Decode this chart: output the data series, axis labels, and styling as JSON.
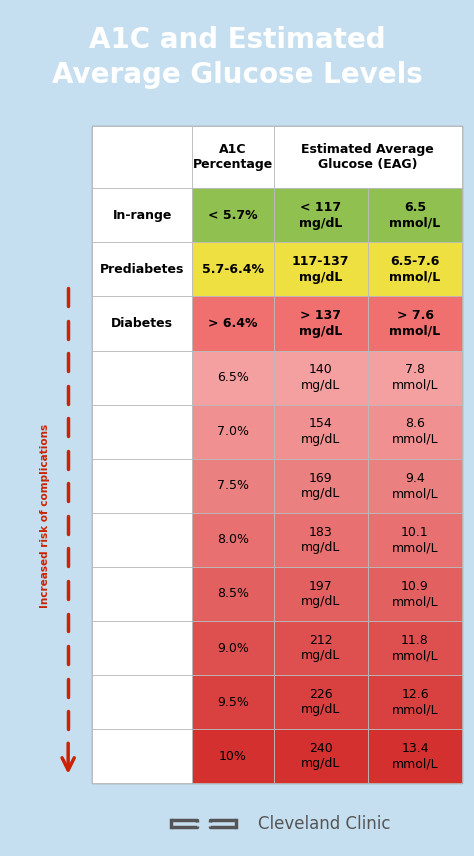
{
  "title": "A1C and Estimated\nAverage Glucose Levels",
  "title_color": "#FFFFFF",
  "title_bg_color": "#1E8EC8",
  "outer_bg_color": "#C5DFF0",
  "table_bg_color": "#FFFFFF",
  "footer_bg_color": "#FFFFFF",
  "footer_text": "Cleveland Clinic",
  "rows": [
    {
      "label": "In-range",
      "a1c": "< 5.7%",
      "mgdl": "< 117\nmg/dL",
      "mmol": "6.5\nmmol/L",
      "color": "#90C050",
      "label_bold": true,
      "data_bold": true
    },
    {
      "label": "Prediabetes",
      "a1c": "5.7-6.4%",
      "mgdl": "117-137\nmg/dL",
      "mmol": "6.5-7.6\nmmol/L",
      "color": "#EEE040",
      "label_bold": true,
      "data_bold": true
    },
    {
      "label": "Diabetes",
      "a1c": "> 6.4%",
      "mgdl": "> 137\nmg/dL",
      "mmol": "> 7.6\nmmol/L",
      "color": "#F07070",
      "label_bold": true,
      "data_bold": true
    },
    {
      "label": "",
      "a1c": "6.5%",
      "mgdl": "140\nmg/dL",
      "mmol": "7.8\nmmol/L",
      "color": "#F5A0A0",
      "label_bold": false,
      "data_bold": false
    },
    {
      "label": "",
      "a1c": "7.0%",
      "mgdl": "154\nmg/dL",
      "mmol": "8.6\nmmol/L",
      "color": "#F09090",
      "label_bold": false,
      "data_bold": false
    },
    {
      "label": "",
      "a1c": "7.5%",
      "mgdl": "169\nmg/dL",
      "mmol": "9.4\nmmol/L",
      "color": "#EB8080",
      "label_bold": false,
      "data_bold": false
    },
    {
      "label": "",
      "a1c": "8.0%",
      "mgdl": "183\nmg/dL",
      "mmol": "10.1\nmmol/L",
      "color": "#E87070",
      "label_bold": false,
      "data_bold": false
    },
    {
      "label": "",
      "a1c": "8.5%",
      "mgdl": "197\nmg/dL",
      "mmol": "10.9\nmmol/L",
      "color": "#E36060",
      "label_bold": false,
      "data_bold": false
    },
    {
      "label": "",
      "a1c": "9.0%",
      "mgdl": "212\nmg/dL",
      "mmol": "11.8\nmmol/L",
      "color": "#DE5050",
      "label_bold": false,
      "data_bold": false
    },
    {
      "label": "",
      "a1c": "9.5%",
      "mgdl": "226\nmg/dL",
      "mmol": "12.6\nmmol/L",
      "color": "#D94040",
      "label_bold": false,
      "data_bold": false
    },
    {
      "label": "",
      "a1c": "10%",
      "mgdl": "240\nmg/dL",
      "mmol": "13.4\nmmol/L",
      "color": "#D43030",
      "label_bold": false,
      "data_bold": false
    }
  ],
  "arrow_label": "Increased risk of complications",
  "arrow_color": "#CC2200",
  "grid_color": "#BBBBBB",
  "header_font_size": 9,
  "label_font_size": 9,
  "data_font_size": 9,
  "title_font_size": 20
}
